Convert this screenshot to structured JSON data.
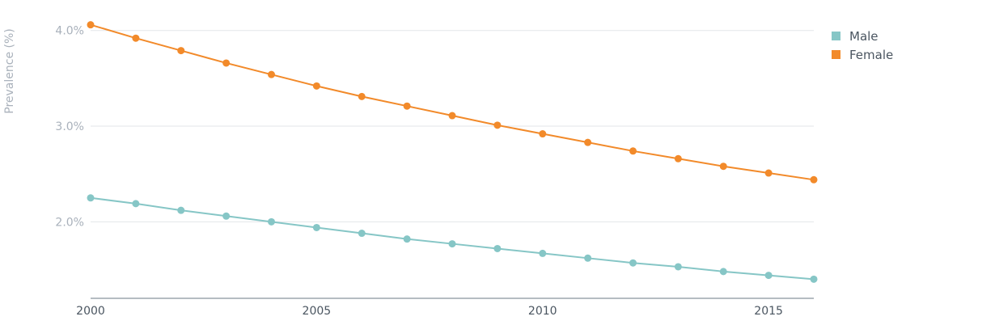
{
  "chart_data": {
    "type": "line",
    "title": "",
    "xlabel": "",
    "ylabel": "Prevalence (%)",
    "x": [
      2000,
      2001,
      2002,
      2003,
      2004,
      2005,
      2006,
      2007,
      2008,
      2009,
      2010,
      2011,
      2012,
      2013,
      2014,
      2015,
      2016
    ],
    "xlim": [
      2000,
      2016
    ],
    "ylim": [
      1.2,
      4.15
    ],
    "x_ticks": [
      "2000",
      "2005",
      "2010",
      "2015"
    ],
    "y_ticks": [
      "2.0%",
      "3.0%",
      "4.0%"
    ],
    "grid": "horizontal",
    "legend_position": "top-right",
    "series": [
      {
        "name": "Male",
        "color": "#86c6c6",
        "values": [
          2.25,
          2.19,
          2.12,
          2.06,
          2.0,
          1.94,
          1.88,
          1.82,
          1.77,
          1.72,
          1.67,
          1.62,
          1.57,
          1.53,
          1.48,
          1.44,
          1.4
        ]
      },
      {
        "name": "Female",
        "color": "#f28a2a",
        "values": [
          4.06,
          3.92,
          3.79,
          3.66,
          3.54,
          3.42,
          3.31,
          3.21,
          3.11,
          3.01,
          2.92,
          2.83,
          2.74,
          2.66,
          2.58,
          2.51,
          2.44
        ]
      }
    ]
  }
}
